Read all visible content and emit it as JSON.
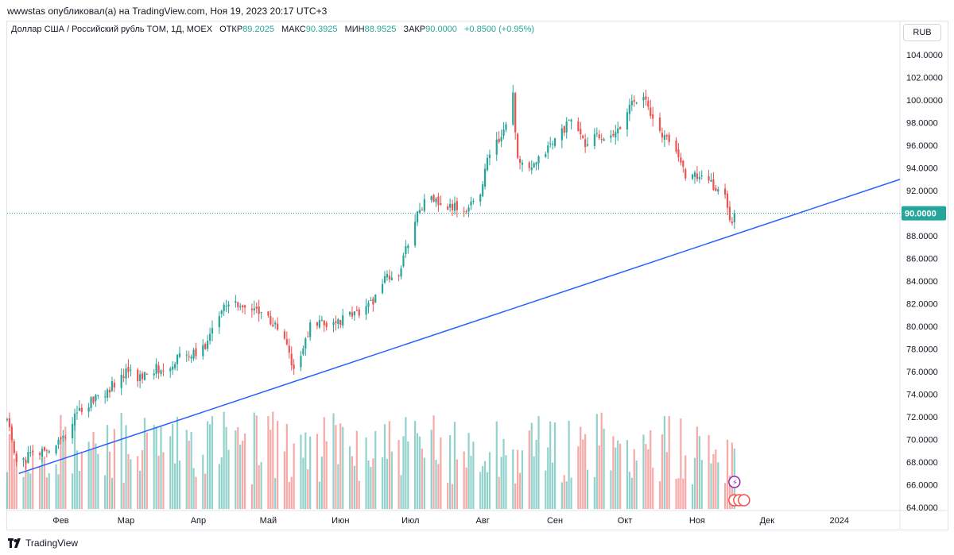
{
  "header": {
    "attribution": "wwwstas опубликовал(а) на TradingView.com, Ноя 19, 2023 20:17 UTC+3"
  },
  "legend": {
    "symbol": "Доллар США / Российский рубль TOM, 1Д, MOEX",
    "open_label": "ОТКР",
    "open": "89.2025",
    "high_label": "МАКС",
    "high": "90.3925",
    "low_label": "МИН",
    "low": "88.9525",
    "close_label": "ЗАКР",
    "close": "90.0000",
    "change": "+0.8500 (+0.95%)"
  },
  "currency_button": "RUB",
  "last_price_label": "90.0000",
  "footer": {
    "brand": "TradingView"
  },
  "colors": {
    "up": "#26a69a",
    "down": "#ef5350",
    "trendline": "#2962ff",
    "axis_text": "#131722"
  },
  "chart_data": {
    "type": "candlestick",
    "y_ticks": [
      "104.0000",
      "102.0000",
      "100.0000",
      "98.0000",
      "96.0000",
      "94.0000",
      "92.0000",
      "90.0000",
      "88.0000",
      "86.0000",
      "84.0000",
      "82.0000",
      "80.0000",
      "78.0000",
      "76.0000",
      "74.0000",
      "72.0000",
      "70.0000",
      "68.0000",
      "66.0000",
      "64.0000"
    ],
    "ylim": [
      63.8,
      105.2
    ],
    "x_labels": [
      {
        "label": "Фев",
        "date": "2023-02-01"
      },
      {
        "label": "Мар",
        "date": "2023-03-01"
      },
      {
        "label": "Апр",
        "date": "2023-04-01"
      },
      {
        "label": "Май",
        "date": "2023-05-01"
      },
      {
        "label": "Июн",
        "date": "2023-06-01"
      },
      {
        "label": "Июл",
        "date": "2023-07-01"
      },
      {
        "label": "Авг",
        "date": "2023-08-01"
      },
      {
        "label": "Сен",
        "date": "2023-09-01"
      },
      {
        "label": "Окт",
        "date": "2023-10-01"
      },
      {
        "label": "Ноя",
        "date": "2023-11-01"
      },
      {
        "label": "Дек",
        "date": "2023-12-01"
      },
      {
        "label": "2024",
        "date": "2024-01-01"
      }
    ],
    "x_range": [
      "2023-01-09",
      "2024-01-27"
    ],
    "last_price": 90.0,
    "trendline": {
      "start": [
        "2023-01-14",
        67.0
      ],
      "end": [
        "2024-01-27",
        93.0
      ]
    },
    "price_path": [
      [
        "2023-01-09",
        71.8
      ],
      [
        "2023-01-12",
        68.5
      ],
      [
        "2023-01-16",
        68.2
      ],
      [
        "2023-01-20",
        68.8
      ],
      [
        "2023-01-27",
        69.0
      ],
      [
        "2023-02-03",
        70.5
      ],
      [
        "2023-02-08",
        72.2
      ],
      [
        "2023-02-14",
        73.5
      ],
      [
        "2023-02-20",
        74.2
      ],
      [
        "2023-02-24",
        75.0
      ],
      [
        "2023-03-02",
        76.0
      ],
      [
        "2023-03-07",
        75.5
      ],
      [
        "2023-03-14",
        76.3
      ],
      [
        "2023-03-20",
        76.5
      ],
      [
        "2023-03-24",
        77.5
      ],
      [
        "2023-03-31",
        77.5
      ],
      [
        "2023-04-05",
        78.5
      ],
      [
        "2023-04-11",
        81.8
      ],
      [
        "2023-04-14",
        82.3
      ],
      [
        "2023-04-20",
        81.5
      ],
      [
        "2023-04-28",
        81.5
      ],
      [
        "2023-05-03",
        80.2
      ],
      [
        "2023-05-08",
        79.0
      ],
      [
        "2023-05-12",
        76.0
      ],
      [
        "2023-05-16",
        78.0
      ],
      [
        "2023-05-19",
        80.0
      ],
      [
        "2023-05-26",
        80.2
      ],
      [
        "2023-06-02",
        80.6
      ],
      [
        "2023-06-08",
        81.2
      ],
      [
        "2023-06-14",
        82.0
      ],
      [
        "2023-06-20",
        84.2
      ],
      [
        "2023-06-26",
        84.5
      ],
      [
        "2023-06-30",
        87.5
      ],
      [
        "2023-07-05",
        90.5
      ],
      [
        "2023-07-10",
        91.5
      ],
      [
        "2023-07-14",
        90.5
      ],
      [
        "2023-07-20",
        90.5
      ],
      [
        "2023-07-25",
        90.2
      ],
      [
        "2023-07-31",
        92.0
      ],
      [
        "2023-08-04",
        95.5
      ],
      [
        "2023-08-09",
        96.8
      ],
      [
        "2023-08-14",
        100.5
      ],
      [
        "2023-08-16",
        94.5
      ],
      [
        "2023-08-22",
        93.8
      ],
      [
        "2023-08-28",
        95.5
      ],
      [
        "2023-09-01",
        96.5
      ],
      [
        "2023-09-07",
        98.0
      ],
      [
        "2023-09-11",
        97.5
      ],
      [
        "2023-09-14",
        96.0
      ],
      [
        "2023-09-19",
        96.8
      ],
      [
        "2023-09-25",
        96.5
      ],
      [
        "2023-09-29",
        97.5
      ],
      [
        "2023-10-04",
        100.0
      ],
      [
        "2023-10-09",
        100.5
      ],
      [
        "2023-10-12",
        98.5
      ],
      [
        "2023-10-17",
        97.0
      ],
      [
        "2023-10-23",
        95.5
      ],
      [
        "2023-10-27",
        93.5
      ],
      [
        "2023-11-02",
        93.2
      ],
      [
        "2023-11-07",
        92.5
      ],
      [
        "2023-11-13",
        91.5
      ],
      [
        "2023-11-16",
        88.8
      ],
      [
        "2023-11-17",
        90.0
      ]
    ],
    "volume": {
      "axis_max": 74.5,
      "axis_min": 63.8,
      "bottom_value": 64.0
    }
  }
}
